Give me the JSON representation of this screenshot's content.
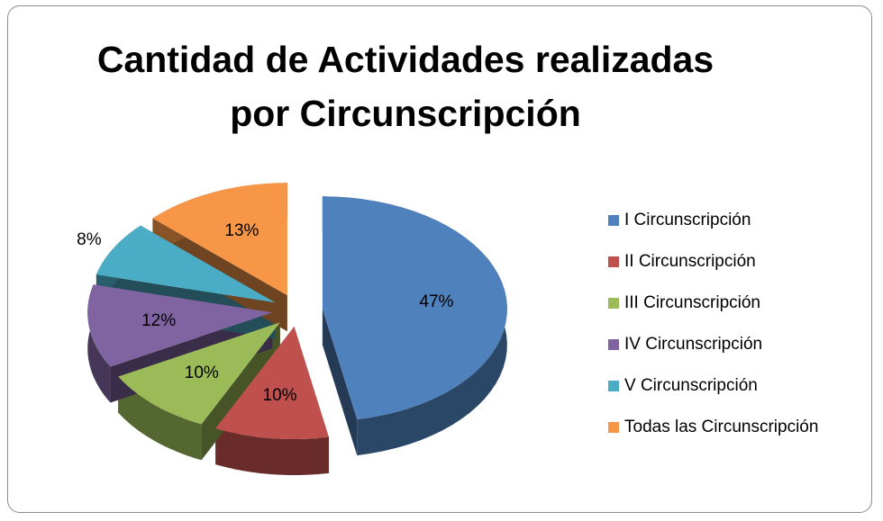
{
  "chart_data": {
    "type": "pie",
    "title": "Cantidad de Actividades realizadas por Circunscripción",
    "categories": [
      "I Circunscripción",
      "II Circunscripción",
      "III Circunscripción",
      "IV Circunscripción",
      "V Circunscripción",
      "Todas las Circunscripción"
    ],
    "values": [
      47,
      10,
      10,
      12,
      8,
      13
    ],
    "value_labels": [
      "47%",
      "10%",
      "10%",
      "12%",
      "8%",
      "13%"
    ],
    "colors": [
      "#4f81bd",
      "#c0504d",
      "#9bbb59",
      "#8064a2",
      "#4bacc6",
      "#f79646"
    ],
    "legend": "right"
  }
}
